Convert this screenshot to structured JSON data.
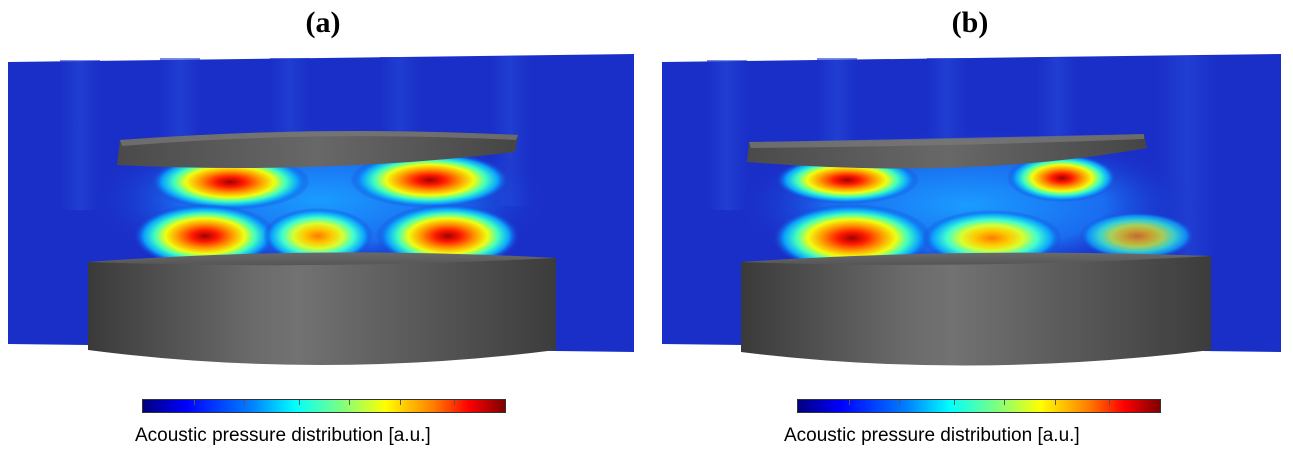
{
  "panels": [
    {
      "label": "(a)",
      "colorbar_label": "Acoustic pressure distribution [a.u.]"
    },
    {
      "label": "(b)",
      "colorbar_label": "Acoustic pressure distribution [a.u.]"
    }
  ],
  "colorbar": {
    "colormap": "jet",
    "colors": [
      "#00007f",
      "#0000ff",
      "#0080ff",
      "#00ffff",
      "#7fff7f",
      "#ffff00",
      "#ff8000",
      "#ff0000",
      "#800000"
    ]
  },
  "colors": {
    "field_background": "#1a2fc8",
    "transducer": "#5a5a5a",
    "reflector": "#5a5a5a"
  }
}
